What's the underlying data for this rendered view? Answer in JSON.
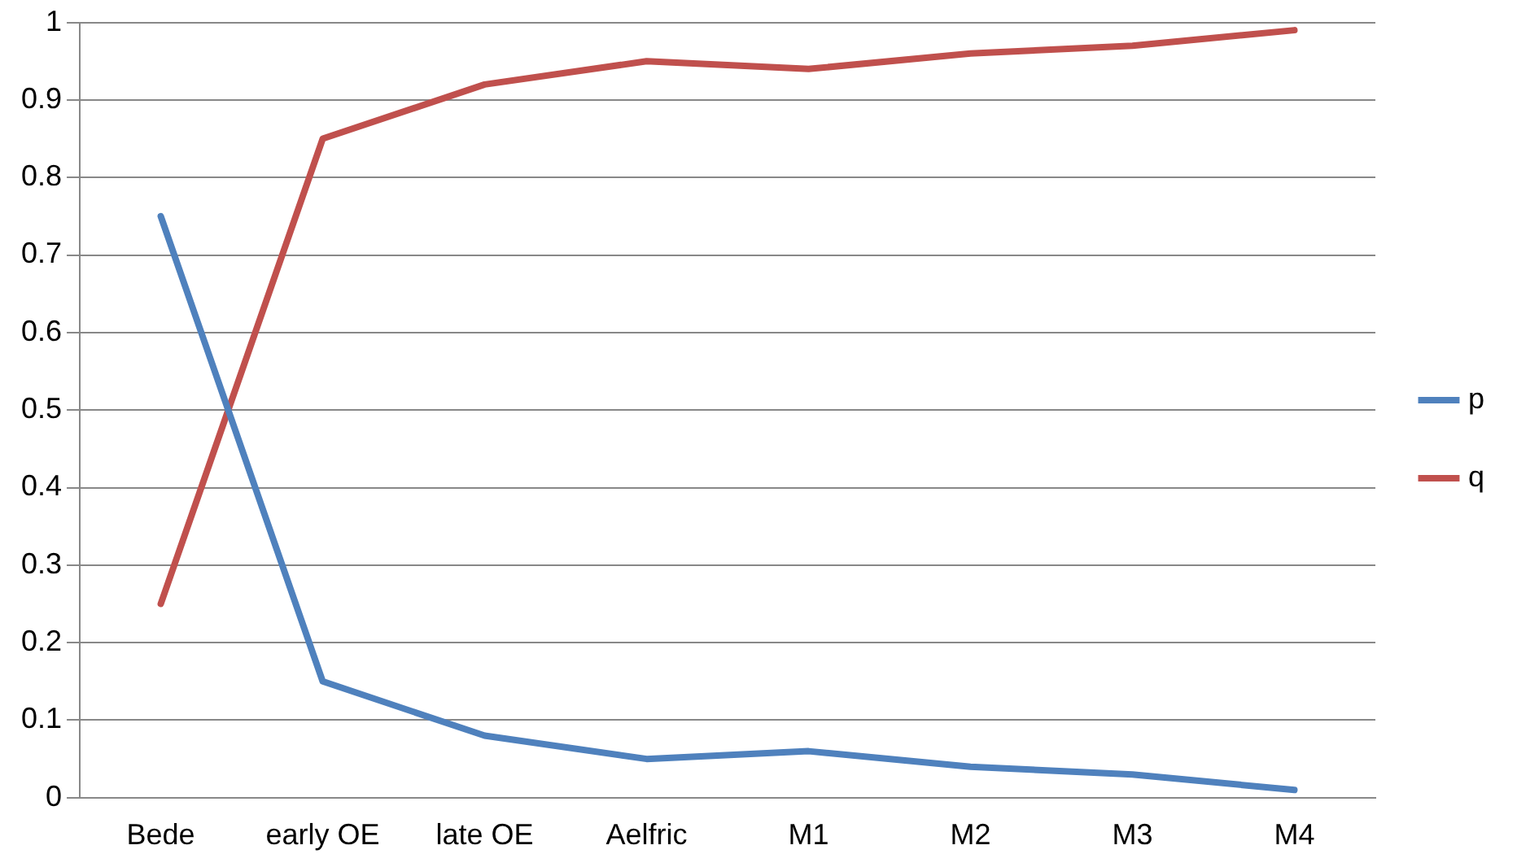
{
  "chart_data": {
    "type": "line",
    "categories": [
      "Bede",
      "early OE",
      "late OE",
      "Aelfric",
      "M1",
      "M2",
      "M3",
      "M4"
    ],
    "series": [
      {
        "name": "p",
        "color": "#4f81bd",
        "values": [
          0.75,
          0.15,
          0.08,
          0.05,
          0.06,
          0.04,
          0.03,
          0.01
        ]
      },
      {
        "name": "q",
        "color": "#c0504d",
        "values": [
          0.25,
          0.85,
          0.92,
          0.95,
          0.94,
          0.96,
          0.97,
          0.99
        ]
      }
    ],
    "ylim": [
      0,
      1
    ],
    "yticks": [
      0,
      0.1,
      0.2,
      0.3,
      0.4,
      0.5,
      0.6,
      0.7,
      0.8,
      0.9,
      1
    ],
    "grid": "y",
    "legend": "right",
    "marker": "none",
    "line_style": "solid"
  }
}
